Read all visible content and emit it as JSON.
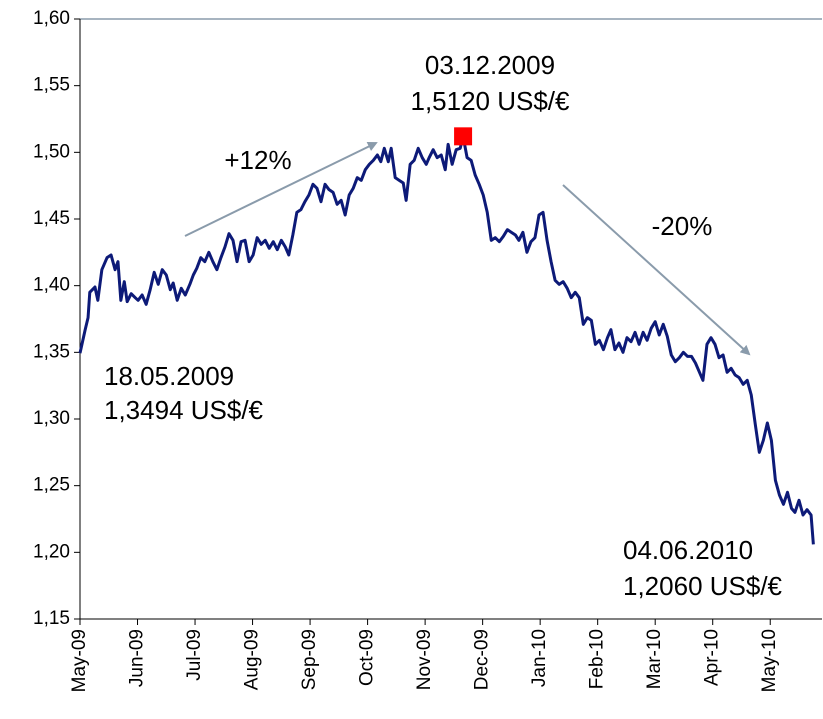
{
  "chart_data": {
    "type": "line",
    "annotations": [
      "03.12.2009",
      "1,5120 US$/€",
      "+12%",
      "-20%",
      "18.05.2009",
      "1,3494 US$/€",
      "04.06.2010",
      "1,2060 US$/€"
    ],
    "xlim": [
      0,
      12.9
    ],
    "ylim": [
      1.15,
      1.6
    ],
    "xticks": [
      {
        "value": 0,
        "label": "May-09"
      },
      {
        "value": 1,
        "label": "Jun-09"
      },
      {
        "value": 2,
        "label": "Jul-09"
      },
      {
        "value": 3,
        "label": "Aug-09"
      },
      {
        "value": 4,
        "label": "Sep-09"
      },
      {
        "value": 5,
        "label": "Oct-09"
      },
      {
        "value": 6,
        "label": "Nov-09"
      },
      {
        "value": 7,
        "label": "Dec-09"
      },
      {
        "value": 8,
        "label": "Jan-10"
      },
      {
        "value": 9,
        "label": "Feb-10"
      },
      {
        "value": 10,
        "label": "Mar-10"
      },
      {
        "value": 11,
        "label": "Apr-10"
      },
      {
        "value": 12,
        "label": "May-10"
      }
    ],
    "yticks": [
      {
        "value": 1.15,
        "label": "1,15"
      },
      {
        "value": 1.2,
        "label": "1,20"
      },
      {
        "value": 1.25,
        "label": "1,25"
      },
      {
        "value": 1.3,
        "label": "1,30"
      },
      {
        "value": 1.35,
        "label": "1,35"
      },
      {
        "value": 1.4,
        "label": "1,40"
      },
      {
        "value": 1.45,
        "label": "1,45"
      },
      {
        "value": 1.5,
        "label": "1,50"
      },
      {
        "value": 1.55,
        "label": "1,55"
      },
      {
        "value": 1.6,
        "label": "1,60"
      }
    ],
    "peak_color": "#ff0000",
    "series": [
      {
        "color": "#0d1a78",
        "x": [
          0,
          0.09,
          0.14,
          0.17,
          0.26,
          0.31,
          0.38,
          0.47,
          0.54,
          0.61,
          0.66,
          0.71,
          0.77,
          0.82,
          0.89,
          0.96,
          1.01,
          1.08,
          1.15,
          1.22,
          1.29,
          1.36,
          1.43,
          1.5,
          1.57,
          1.62,
          1.69,
          1.76,
          1.83,
          1.91,
          1.97,
          2.03,
          2.1,
          2.17,
          2.24,
          2.31,
          2.38,
          2.45,
          2.52,
          2.59,
          2.66,
          2.73,
          2.8,
          2.87,
          2.94,
          3.01,
          3.08,
          3.15,
          3.22,
          3.29,
          3.36,
          3.43,
          3.5,
          3.57,
          3.63,
          3.7,
          3.77,
          3.84,
          3.91,
          3.98,
          4.05,
          4.12,
          4.19,
          4.26,
          4.33,
          4.4,
          4.47,
          4.54,
          4.61,
          4.68,
          4.75,
          4.82,
          4.89,
          4.96,
          5.03,
          5.1,
          5.17,
          5.23,
          5.29,
          5.36,
          5.41,
          5.48,
          5.55,
          5.62,
          5.67,
          5.74,
          5.81,
          5.88,
          5.95,
          6.02,
          6.07,
          6.14,
          6.21,
          6.28,
          6.35,
          6.4,
          6.47,
          6.54,
          6.61,
          6.66,
          6.73,
          6.8,
          6.87,
          6.94,
          7.01,
          7.08,
          7.15,
          7.22,
          7.29,
          7.36,
          7.43,
          7.5,
          7.57,
          7.63,
          7.7,
          7.77,
          7.84,
          7.91,
          7.98,
          8.05,
          8.12,
          8.19,
          8.26,
          8.33,
          8.4,
          8.47,
          8.54,
          8.61,
          8.68,
          8.75,
          8.82,
          8.89,
          8.96,
          9.03,
          9.1,
          9.17,
          9.23,
          9.3,
          9.37,
          9.44,
          9.51,
          9.58,
          9.65,
          9.72,
          9.79,
          9.86,
          9.93,
          10,
          10.07,
          10.14,
          10.21,
          10.28,
          10.35,
          10.42,
          10.49,
          10.56,
          10.63,
          10.7,
          10.77,
          10.83,
          10.9,
          10.97,
          11.04,
          11.11,
          11.18,
          11.25,
          11.32,
          11.39,
          11.46,
          11.53,
          11.6,
          11.67,
          11.74,
          11.81,
          11.88,
          11.95,
          12.02,
          12.09,
          12.16,
          12.23,
          12.3,
          12.37,
          12.43,
          12.5,
          12.57,
          12.64,
          12.71,
          12.75
        ],
        "values": [
          1.3494,
          1.367,
          1.376,
          1.395,
          1.399,
          1.389,
          1.412,
          1.421,
          1.423,
          1.412,
          1.418,
          1.389,
          1.403,
          1.388,
          1.394,
          1.391,
          1.389,
          1.393,
          1.386,
          1.397,
          1.41,
          1.401,
          1.412,
          1.408,
          1.397,
          1.402,
          1.389,
          1.398,
          1.393,
          1.401,
          1.408,
          1.413,
          1.421,
          1.418,
          1.425,
          1.418,
          1.412,
          1.421,
          1.429,
          1.439,
          1.434,
          1.418,
          1.433,
          1.434,
          1.418,
          1.423,
          1.436,
          1.431,
          1.434,
          1.428,
          1.433,
          1.427,
          1.434,
          1.429,
          1.423,
          1.438,
          1.455,
          1.457,
          1.463,
          1.468,
          1.476,
          1.473,
          1.463,
          1.476,
          1.472,
          1.47,
          1.461,
          1.464,
          1.453,
          1.468,
          1.473,
          1.481,
          1.479,
          1.487,
          1.491,
          1.494,
          1.498,
          1.493,
          1.503,
          1.493,
          1.503,
          1.481,
          1.479,
          1.477,
          1.464,
          1.491,
          1.494,
          1.503,
          1.496,
          1.491,
          1.496,
          1.502,
          1.496,
          1.498,
          1.487,
          1.506,
          1.491,
          1.502,
          1.503,
          1.512,
          1.496,
          1.494,
          1.483,
          1.476,
          1.468,
          1.455,
          1.434,
          1.436,
          1.433,
          1.437,
          1.442,
          1.44,
          1.438,
          1.434,
          1.44,
          1.425,
          1.433,
          1.436,
          1.453,
          1.455,
          1.434,
          1.418,
          1.404,
          1.401,
          1.403,
          1.398,
          1.391,
          1.395,
          1.391,
          1.371,
          1.376,
          1.374,
          1.356,
          1.359,
          1.352,
          1.361,
          1.367,
          1.352,
          1.357,
          1.35,
          1.361,
          1.358,
          1.365,
          1.356,
          1.365,
          1.359,
          1.368,
          1.373,
          1.363,
          1.371,
          1.362,
          1.348,
          1.343,
          1.346,
          1.35,
          1.347,
          1.347,
          1.342,
          1.335,
          1.329,
          1.356,
          1.361,
          1.356,
          1.346,
          1.348,
          1.335,
          1.338,
          1.333,
          1.331,
          1.326,
          1.329,
          1.318,
          1.296,
          1.275,
          1.284,
          1.297,
          1.284,
          1.254,
          1.243,
          1.236,
          1.245,
          1.233,
          1.23,
          1.239,
          1.228,
          1.232,
          1.228,
          1.206
        ]
      }
    ]
  }
}
